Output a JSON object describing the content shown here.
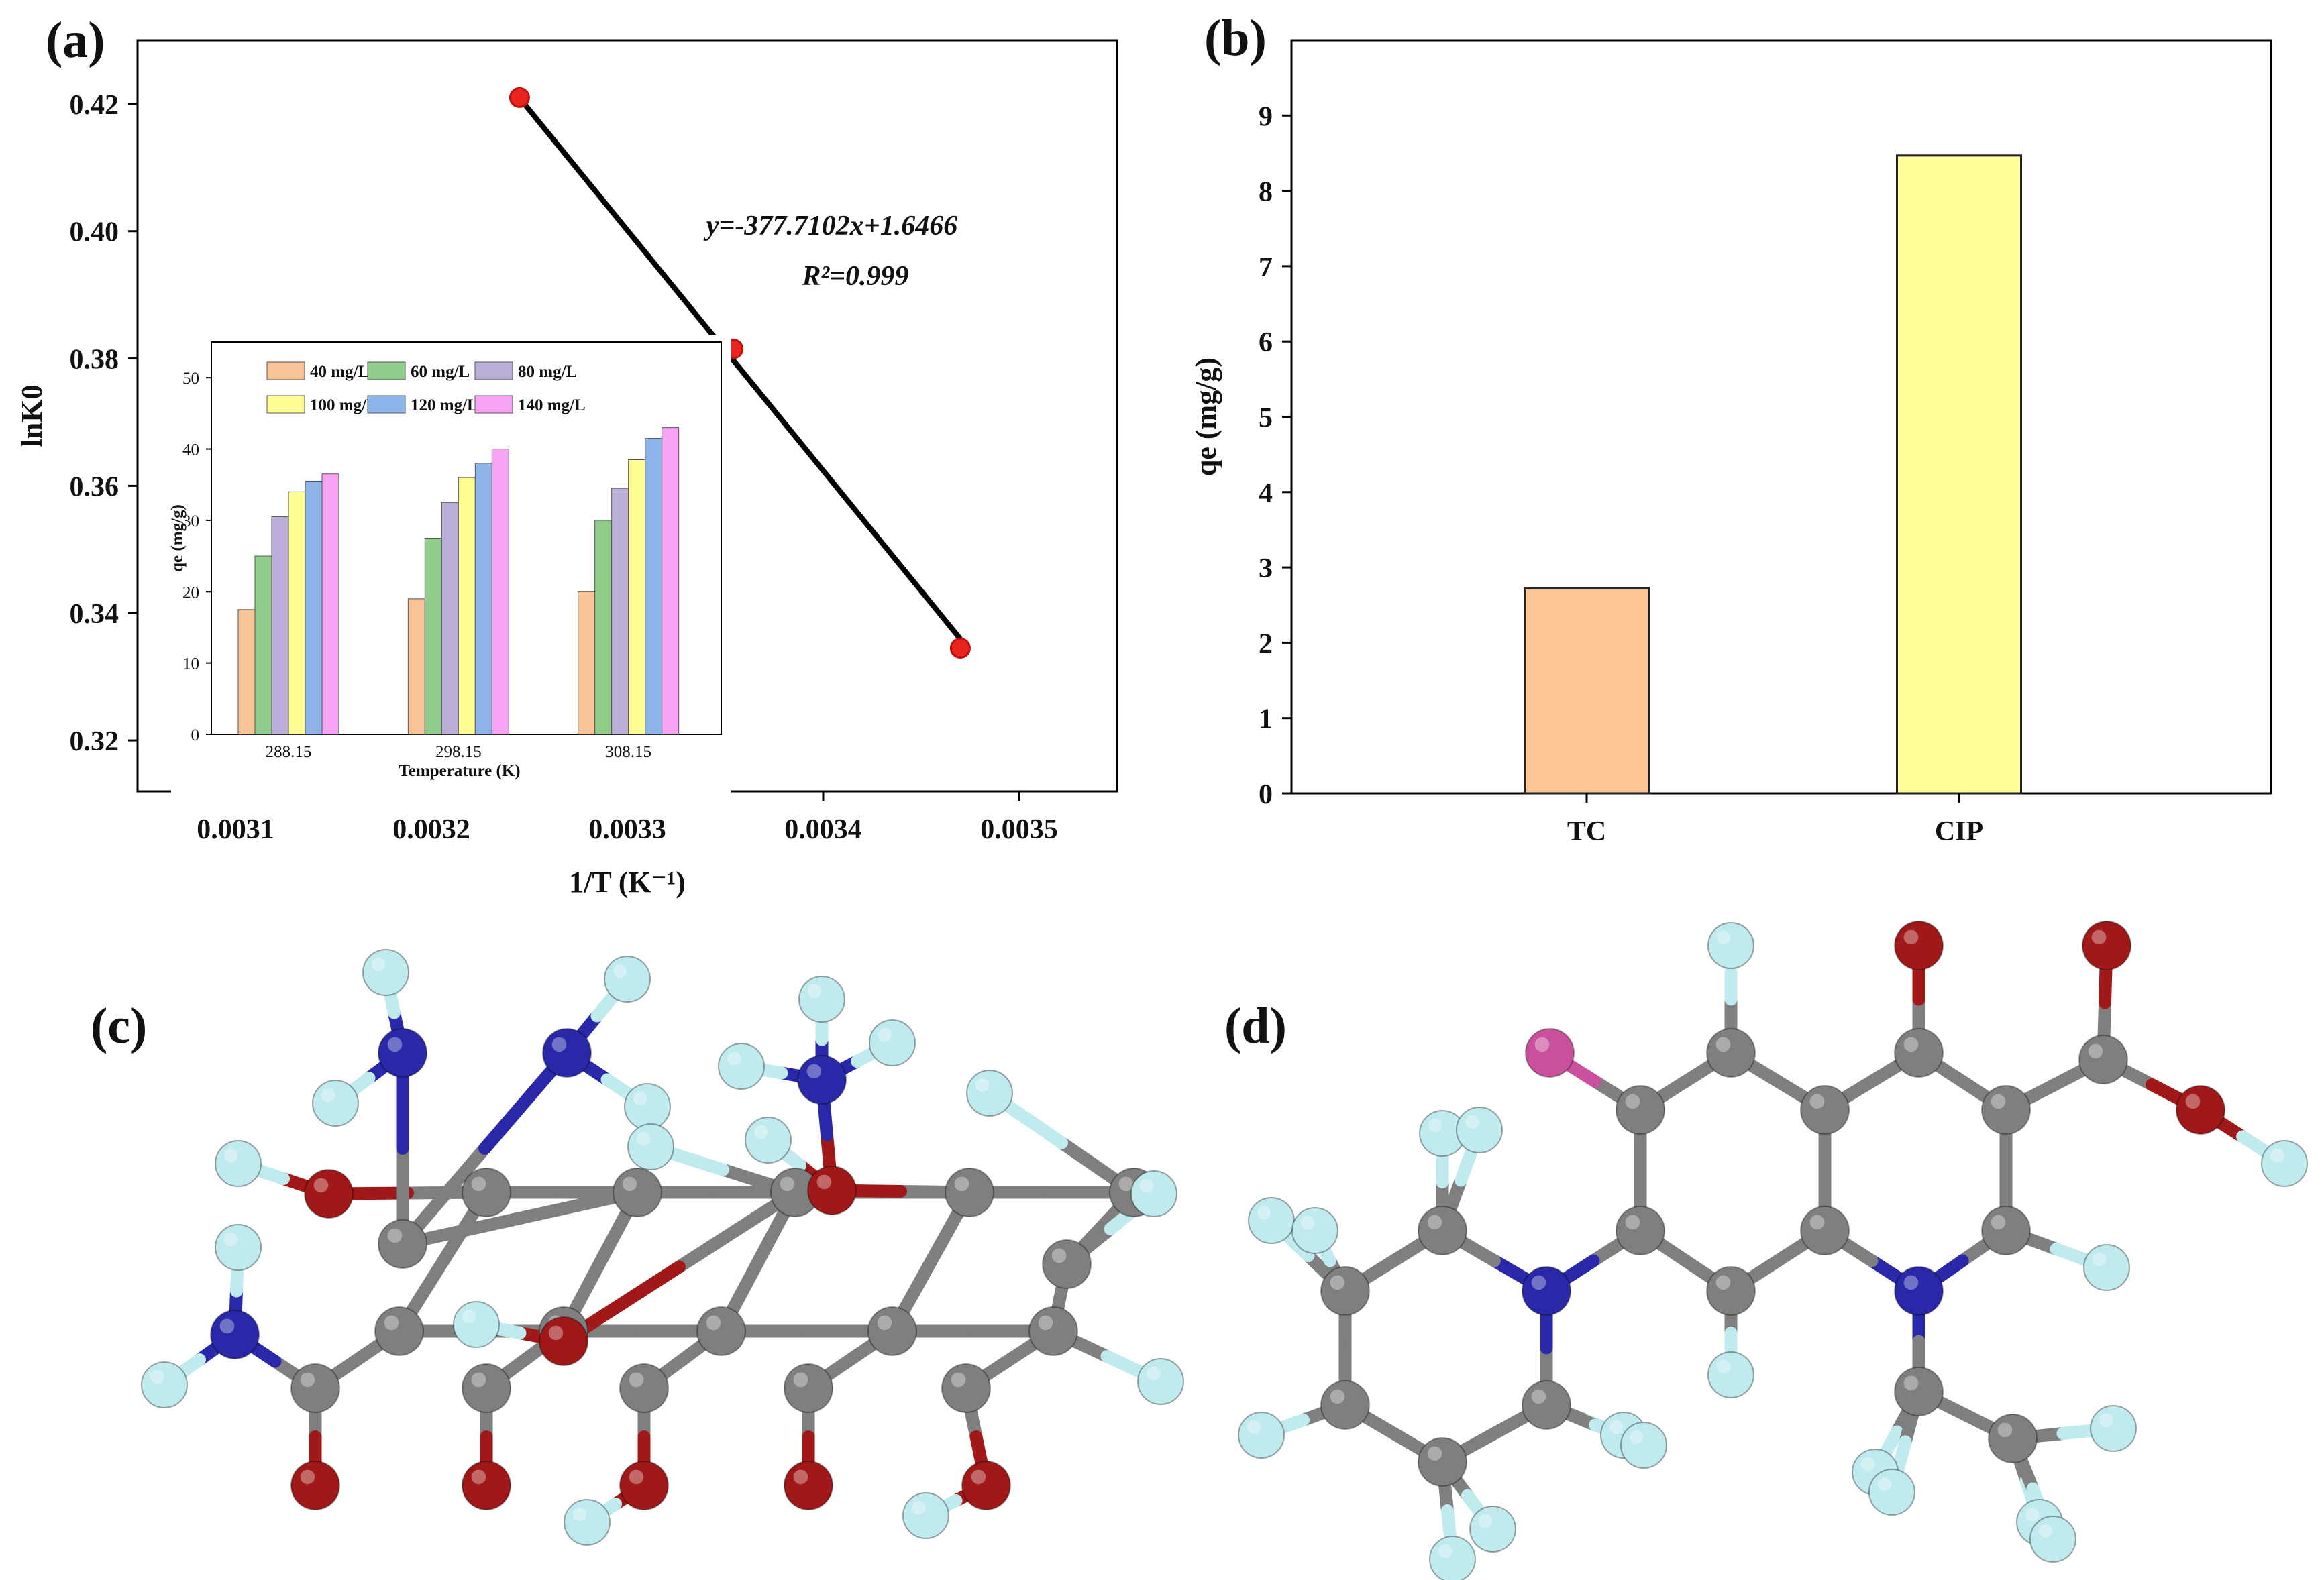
{
  "panels": {
    "a": "(a)",
    "b": "(b)",
    "c": "(c)",
    "d": "(d)"
  },
  "chart_data": [
    {
      "id": "a",
      "type": "scatter",
      "xlabel": "1/T (K⁻¹)",
      "ylabel": "lnK0",
      "xlim": [
        0.00305,
        0.00355
      ],
      "ylim": [
        0.312,
        0.43
      ],
      "xticks": [
        "0.0031",
        "0.0032",
        "0.0033",
        "0.0034",
        "0.0035"
      ],
      "xtick_values": [
        0.0031,
        0.0032,
        0.0033,
        0.0034,
        0.0035
      ],
      "yticks": [
        "0.32",
        "0.34",
        "0.36",
        "0.38",
        "0.40",
        "0.42"
      ],
      "ytick_values": [
        0.32,
        0.34,
        0.36,
        0.38,
        0.4,
        0.42
      ],
      "points": [
        {
          "x": 0.003245,
          "y": 0.421
        },
        {
          "x": 0.003354,
          "y": 0.3815
        },
        {
          "x": 0.00347,
          "y": 0.3345
        }
      ],
      "fit": {
        "slope": -377.7102,
        "intercept": 1.6466,
        "equation": "y=-377.7102x+1.6466",
        "r2": "R²=0.999"
      },
      "colors": {
        "points": "#e8241c",
        "line": "#000000"
      }
    },
    {
      "id": "a-inset",
      "type": "bar",
      "xlabel": "Temperature (K)",
      "ylabel": "qe (mg/g)",
      "ylim": [
        0,
        55
      ],
      "yticks": [
        "0",
        "10",
        "20",
        "30",
        "40",
        "50"
      ],
      "ytick_values": [
        0,
        10,
        20,
        30,
        40,
        50
      ],
      "categories": [
        "288.15",
        "298.15",
        "308.15"
      ],
      "series": [
        {
          "name": "40 mg/L",
          "color": "#f9c497",
          "values": [
            17.5,
            19.0,
            20.0
          ]
        },
        {
          "name": "60 mg/L",
          "color": "#90cc8a",
          "values": [
            25.0,
            27.5,
            30.0
          ]
        },
        {
          "name": "80 mg/L",
          "color": "#bbaed8",
          "values": [
            30.5,
            32.5,
            34.5
          ]
        },
        {
          "name": "100 mg/L",
          "color": "#fffc94",
          "values": [
            34.0,
            36.0,
            38.5
          ]
        },
        {
          "name": "120 mg/L",
          "color": "#8db5ea",
          "values": [
            35.5,
            38.0,
            41.5
          ]
        },
        {
          "name": "140 mg/L",
          "color": "#f8a4f4",
          "values": [
            36.5,
            40.0,
            43.0
          ]
        }
      ]
    },
    {
      "id": "b",
      "type": "bar",
      "ylabel": "qe (mg/g)",
      "ylim": [
        0,
        10
      ],
      "yticks": [
        "0",
        "1",
        "2",
        "3",
        "4",
        "5",
        "6",
        "7",
        "8",
        "9"
      ],
      "ytick_values": [
        0,
        1,
        2,
        3,
        4,
        5,
        6,
        7,
        8,
        9
      ],
      "categories": [
        "TC",
        "CIP"
      ],
      "values": [
        2.72,
        8.47
      ],
      "colors": [
        "#fbc594",
        "#ffff99"
      ]
    }
  ],
  "molecules": {
    "colors": {
      "C": "#7f7f7f",
      "H": "#bfeaee",
      "O": "#a01818",
      "N": "#2828a8",
      "F": "#c8509c"
    },
    "c": {
      "atoms": [
        [
          "C",
          725,
          1778
        ],
        [
          "C",
          950,
          1778
        ],
        [
          "C",
          1185,
          1778
        ],
        [
          "C",
          1445,
          1778
        ],
        [
          "C",
          1690,
          1778
        ],
        [
          "C",
          595,
          1985
        ],
        [
          "C",
          840,
          1985
        ],
        [
          "C",
          1075,
          1985
        ],
        [
          "C",
          1330,
          1985
        ],
        [
          "C",
          1570,
          1985
        ],
        [
          "C",
          725,
          2070
        ],
        [
          "C",
          960,
          2070
        ],
        [
          "C",
          1205,
          2070
        ],
        [
          "C",
          1440,
          2070
        ],
        [
          "C",
          470,
          2070
        ],
        [
          "C",
          600,
          1855
        ],
        [
          "C",
          1590,
          1885
        ],
        [
          "N",
          350,
          1990
        ],
        [
          "N",
          600,
          1570
        ],
        [
          "N",
          845,
          1570
        ],
        [
          "N",
          1225,
          1610
        ],
        [
          "O",
          490,
          1780
        ],
        [
          "O",
          470,
          2215
        ],
        [
          "O",
          725,
          2215
        ],
        [
          "O",
          960,
          2215
        ],
        [
          "O",
          1205,
          2215
        ],
        [
          "O",
          1470,
          2215
        ],
        [
          "O",
          840,
          2000
        ],
        [
          "O",
          1240,
          1775
        ],
        [
          "H",
          575,
          1450
        ],
        [
          "H",
          935,
          1460
        ],
        [
          "H",
          500,
          1645
        ],
        [
          "H",
          965,
          1650
        ],
        [
          "H",
          1225,
          1490
        ],
        [
          "H",
          1105,
          1590
        ],
        [
          "H",
          1330,
          1555
        ],
        [
          "H",
          1145,
          1700
        ],
        [
          "H",
          355,
          1735
        ],
        [
          "H",
          355,
          1860
        ],
        [
          "H",
          245,
          2065
        ],
        [
          "H",
          710,
          1975
        ],
        [
          "H",
          875,
          2270
        ],
        [
          "H",
          1380,
          2260
        ],
        [
          "H",
          970,
          1710
        ],
        [
          "H",
          1475,
          1630
        ],
        [
          "H",
          1720,
          1780
        ],
        [
          "H",
          1730,
          2060
        ]
      ],
      "bonds": [
        [
          0,
          1
        ],
        [
          1,
          2
        ],
        [
          2,
          3
        ],
        [
          3,
          4
        ],
        [
          5,
          6
        ],
        [
          6,
          7
        ],
        [
          7,
          8
        ],
        [
          8,
          9
        ],
        [
          0,
          5
        ],
        [
          1,
          6
        ],
        [
          2,
          7
        ],
        [
          3,
          8
        ],
        [
          4,
          16
        ],
        [
          16,
          9
        ],
        [
          5,
          14
        ],
        [
          6,
          10
        ],
        [
          7,
          11
        ],
        [
          8,
          12
        ],
        [
          9,
          13
        ],
        [
          14,
          17
        ],
        [
          14,
          22
        ],
        [
          10,
          23
        ],
        [
          11,
          24
        ],
        [
          12,
          25
        ],
        [
          13,
          26
        ],
        [
          0,
          21
        ],
        [
          1,
          15
        ],
        [
          15,
          18
        ],
        [
          15,
          19
        ],
        [
          3,
          28
        ],
        [
          28,
          20
        ],
        [
          2,
          27
        ],
        [
          18,
          29
        ],
        [
          18,
          31
        ],
        [
          19,
          30
        ],
        [
          19,
          32
        ],
        [
          20,
          33
        ],
        [
          20,
          34
        ],
        [
          20,
          35
        ],
        [
          28,
          36
        ],
        [
          21,
          37
        ],
        [
          17,
          38
        ],
        [
          17,
          39
        ],
        [
          27,
          40
        ],
        [
          24,
          41
        ],
        [
          26,
          42
        ],
        [
          2,
          43
        ],
        [
          4,
          44
        ],
        [
          16,
          45
        ],
        [
          9,
          46
        ]
      ]
    },
    "d": {
      "atoms": [
        [
          "C",
          2445,
          1655
        ],
        [
          "C",
          2580,
          1570
        ],
        [
          "C",
          2720,
          1655
        ],
        [
          "C",
          2720,
          1835
        ],
        [
          "C",
          2580,
          1925
        ],
        [
          "C",
          2445,
          1835
        ],
        [
          "C",
          2860,
          1570
        ],
        [
          "C",
          2990,
          1655
        ],
        [
          "C",
          2990,
          1835
        ],
        [
          "N",
          2860,
          1925
        ],
        [
          "C",
          2150,
          1835
        ],
        [
          "C",
          2005,
          1925
        ],
        [
          "C",
          2005,
          2095
        ],
        [
          "C",
          2150,
          2180
        ],
        [
          "N",
          2305,
          1925
        ],
        [
          "C",
          2305,
          2095
        ],
        [
          "C",
          2860,
          2075
        ],
        [
          "C",
          3000,
          2145
        ],
        [
          "F",
          2310,
          1570
        ],
        [
          "O",
          2860,
          1410
        ],
        [
          "C",
          3135,
          1580
        ],
        [
          "O",
          3140,
          1410
        ],
        [
          "O",
          3280,
          1655
        ],
        [
          "H",
          2580,
          1410
        ],
        [
          "H",
          2580,
          2050
        ],
        [
          "H",
          3140,
          1890
        ],
        [
          "H",
          3405,
          1735
        ],
        [
          "H",
          2150,
          1690
        ],
        [
          "H",
          2205,
          1685
        ],
        [
          "H",
          1895,
          1820
        ],
        [
          "H",
          1960,
          1835
        ],
        [
          "H",
          2165,
          2325
        ],
        [
          "H",
          2225,
          2280
        ],
        [
          "H",
          1880,
          2140
        ],
        [
          "H",
          2420,
          2140
        ],
        [
          "H",
          2450,
          2155
        ],
        [
          "H",
          2795,
          2195
        ],
        [
          "H",
          2820,
          2225
        ],
        [
          "H",
          3040,
          2270
        ],
        [
          "H",
          3060,
          2295
        ],
        [
          "H",
          3150,
          2130
        ]
      ],
      "bonds": [
        [
          0,
          1
        ],
        [
          1,
          2
        ],
        [
          2,
          3
        ],
        [
          3,
          4
        ],
        [
          4,
          5
        ],
        [
          5,
          0
        ],
        [
          2,
          6
        ],
        [
          6,
          7
        ],
        [
          7,
          8
        ],
        [
          8,
          9
        ],
        [
          9,
          3
        ],
        [
          5,
          14
        ],
        [
          14,
          10
        ],
        [
          10,
          11
        ],
        [
          11,
          12
        ],
        [
          12,
          13
        ],
        [
          13,
          15
        ],
        [
          15,
          14
        ],
        [
          9,
          16
        ],
        [
          16,
          17
        ],
        [
          0,
          18
        ],
        [
          6,
          19
        ],
        [
          7,
          20
        ],
        [
          20,
          21
        ],
        [
          20,
          22
        ],
        [
          1,
          23
        ],
        [
          4,
          24
        ],
        [
          8,
          25
        ],
        [
          22,
          26
        ],
        [
          10,
          27
        ],
        [
          10,
          28
        ],
        [
          11,
          29
        ],
        [
          11,
          30
        ],
        [
          13,
          31
        ],
        [
          13,
          32
        ],
        [
          12,
          33
        ],
        [
          15,
          34
        ],
        [
          15,
          35
        ],
        [
          16,
          36
        ],
        [
          16,
          37
        ],
        [
          17,
          38
        ],
        [
          17,
          39
        ],
        [
          17,
          40
        ]
      ]
    }
  }
}
